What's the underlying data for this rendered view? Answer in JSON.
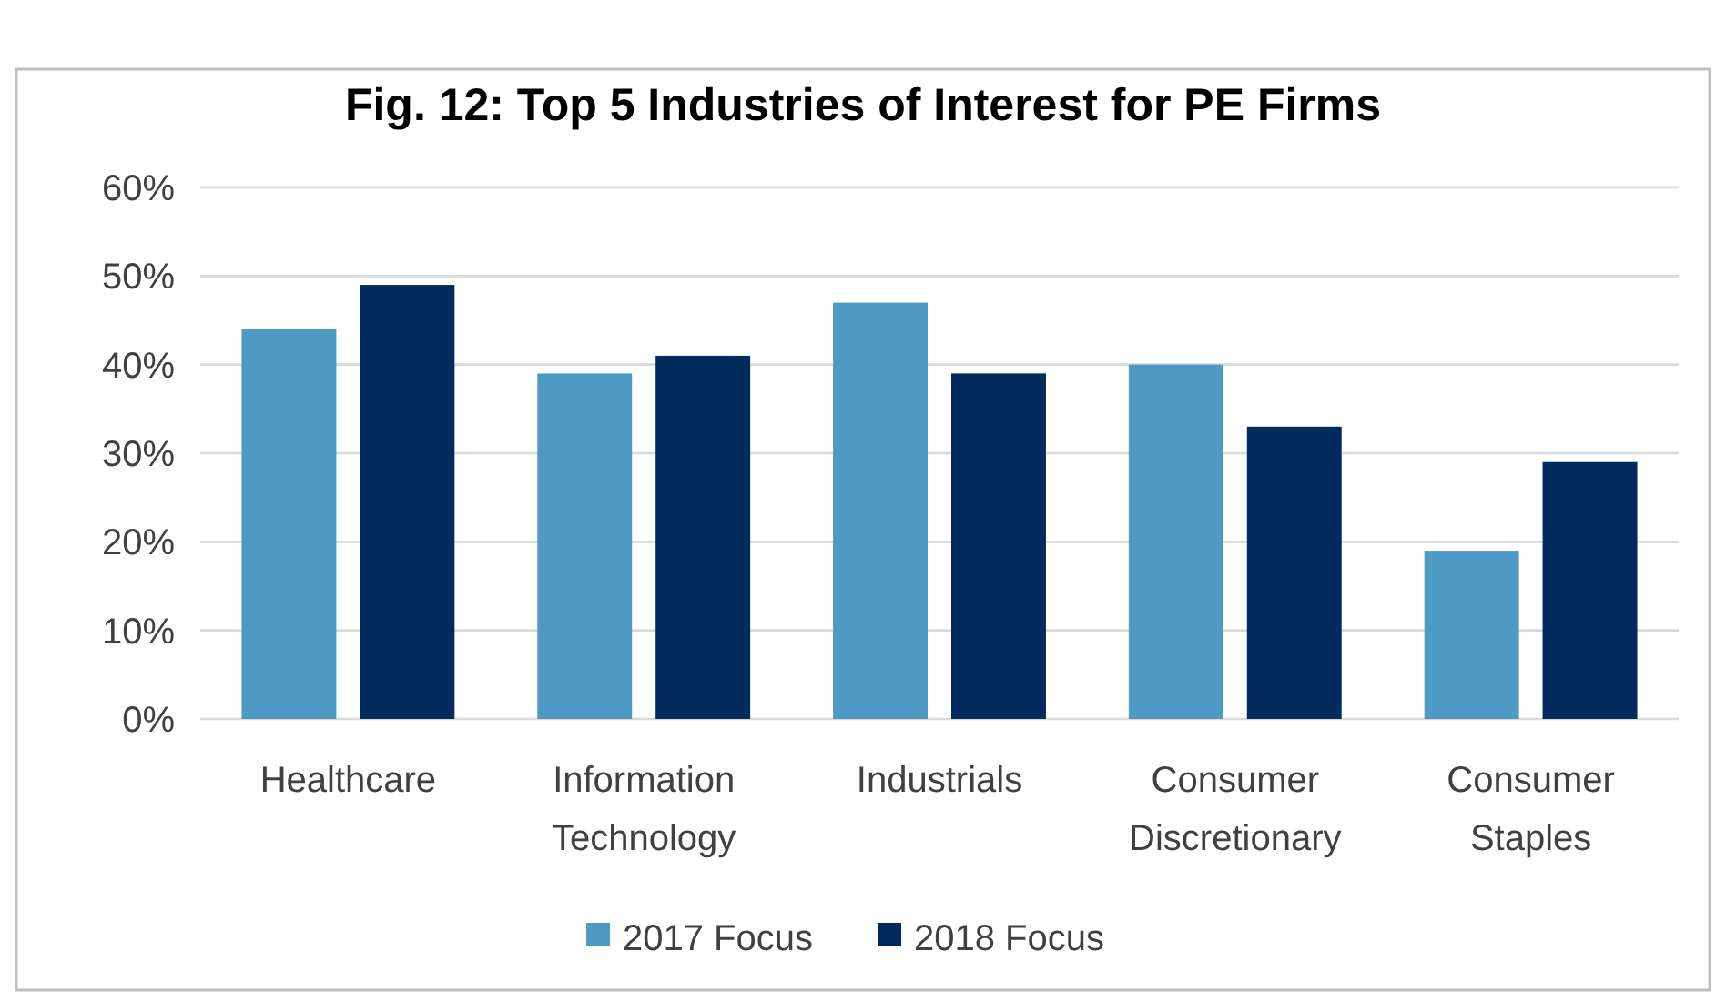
{
  "chart_data": {
    "type": "bar",
    "title": "Fig. 12: Top 5 Industries of Interest for PE Firms",
    "categories": [
      "Healthcare",
      "Information Technology",
      "Industrials",
      "Consumer Discretionary",
      "Consumer Staples"
    ],
    "series": [
      {
        "name": "2017 Focus",
        "color": "#4f9ac3",
        "values": [
          44,
          39,
          47,
          40,
          19
        ]
      },
      {
        "name": "2018 Focus",
        "color": "#002b5c",
        "values": [
          49,
          41,
          39,
          33,
          29
        ]
      }
    ],
    "ylim": [
      0,
      60
    ],
    "yticks": [
      {
        "value": 0,
        "label": "0%"
      },
      {
        "value": 10,
        "label": "10%"
      },
      {
        "value": 20,
        "label": "20%"
      },
      {
        "value": 30,
        "label": "30%"
      },
      {
        "value": 40,
        "label": "40%"
      },
      {
        "value": 50,
        "label": "50%"
      },
      {
        "value": 60,
        "label": "60%"
      }
    ],
    "grid": "y",
    "legend": "bottom"
  }
}
